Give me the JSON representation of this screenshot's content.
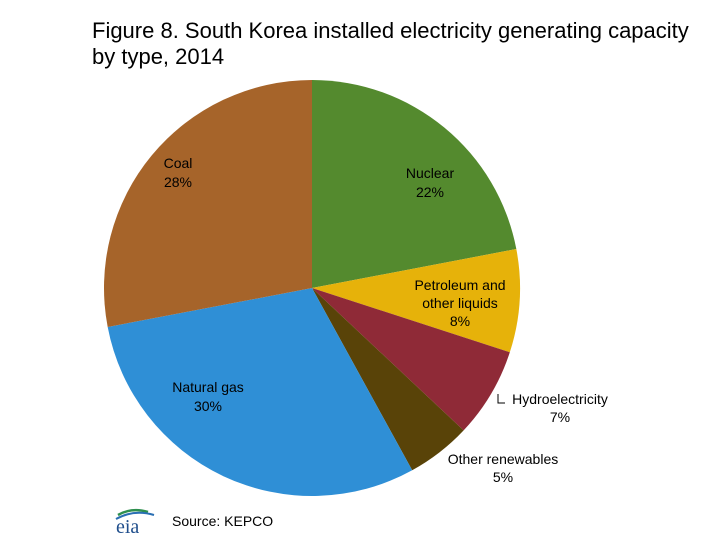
{
  "chart_data": {
    "type": "pie",
    "title": "Figure 8. South Korea installed electricity generating capacity by type, 2014",
    "start_angle_deg": 0,
    "direction": "clockwise",
    "slices": [
      {
        "label": "Nuclear",
        "value": 22,
        "value_label": "22%",
        "color": "#548a2e"
      },
      {
        "label": "Petroleum and other liquids",
        "value": 8,
        "value_label": "8%",
        "color": "#e6b20a"
      },
      {
        "label": "Hydroelectricity",
        "value": 7,
        "value_label": "7%",
        "color": "#8f2a37"
      },
      {
        "label": "Other renewables",
        "value": 5,
        "value_label": "5%",
        "color": "#594308"
      },
      {
        "label": "Natural gas",
        "value": 30,
        "value_label": "30%",
        "color": "#2f8fd6"
      },
      {
        "label": "Coal",
        "value": 28,
        "value_label": "28%",
        "color": "#a6642a"
      }
    ]
  },
  "source": {
    "text": "Source:  KEPCO",
    "logo_text": "eia"
  }
}
